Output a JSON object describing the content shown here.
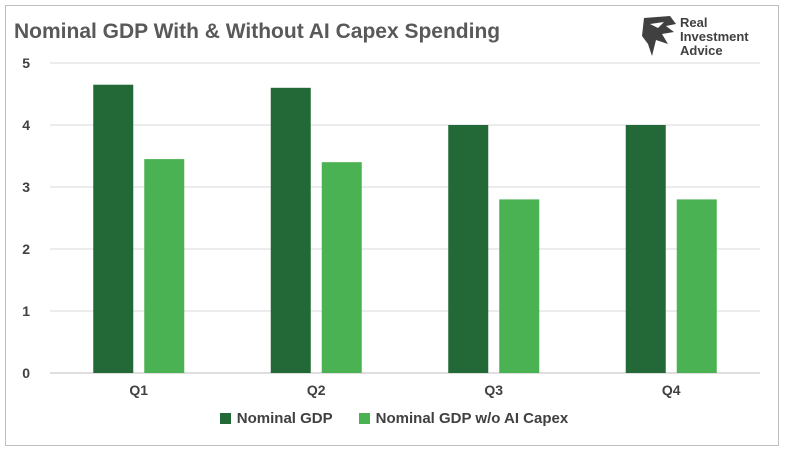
{
  "chart_data": {
    "type": "bar",
    "title": "Nominal GDP With & Without AI Capex Spending",
    "categories": [
      "Q1",
      "Q2",
      "Q3",
      "Q4"
    ],
    "series": [
      {
        "name": "Nominal GDP",
        "values": [
          4.65,
          4.6,
          4.0,
          4.0
        ],
        "color": "#236937"
      },
      {
        "name": "Nominal GDP w/o AI Capex",
        "values": [
          3.45,
          3.4,
          2.8,
          2.8
        ],
        "color": "#4ab252"
      }
    ],
    "yticks": [
      "0",
      "1",
      "2",
      "3",
      "4",
      "5"
    ],
    "ylim": [
      0,
      5
    ],
    "grid": true,
    "legend_position": "bottom"
  },
  "brand": {
    "line1": "Real",
    "line2": "Investment",
    "line3": "Advice",
    "icon": "eagle-head-icon"
  }
}
